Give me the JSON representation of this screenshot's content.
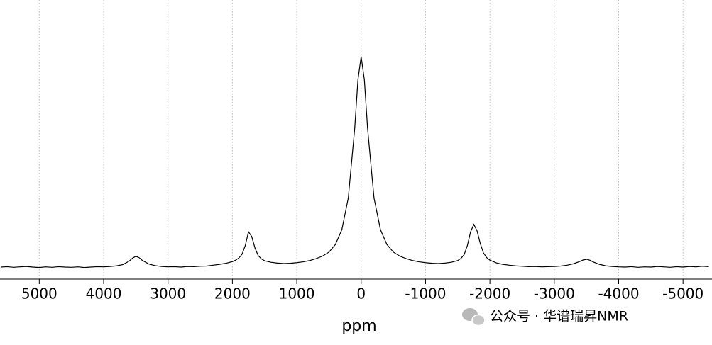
{
  "chart_data": {
    "type": "line",
    "xlabel": "ppm",
    "color": "#000000",
    "grid": true,
    "x_reversed": true,
    "xlim": [
      5610,
      -5450
    ],
    "ylim": [
      -5.4,
      126.8
    ],
    "xticks": [
      5000,
      4000,
      3000,
      2000,
      1000,
      0,
      -1000,
      -2000,
      -3000,
      -4000,
      -5000
    ],
    "x": [
      5600,
      5500,
      5400,
      5300,
      5200,
      5100,
      5000,
      4900,
      4800,
      4700,
      4600,
      4500,
      4400,
      4300,
      4200,
      4100,
      4000,
      3900,
      3800,
      3700,
      3600,
      3550,
      3500,
      3450,
      3400,
      3300,
      3200,
      3100,
      3000,
      2900,
      2800,
      2700,
      2600,
      2500,
      2400,
      2300,
      2200,
      2100,
      2000,
      1950,
      1900,
      1850,
      1800,
      1750,
      1700,
      1650,
      1600,
      1550,
      1500,
      1400,
      1300,
      1200,
      1100,
      1000,
      900,
      800,
      700,
      600,
      500,
      400,
      300,
      200,
      100,
      50,
      0,
      -50,
      -100,
      -200,
      -300,
      -400,
      -500,
      -600,
      -700,
      -800,
      -900,
      -1000,
      -1100,
      -1200,
      -1300,
      -1400,
      -1500,
      -1550,
      -1600,
      -1650,
      -1700,
      -1750,
      -1800,
      -1850,
      -1900,
      -1950,
      -2000,
      -2100,
      -2200,
      -2300,
      -2400,
      -2500,
      -2600,
      -2700,
      -2800,
      -2900,
      -3000,
      -3100,
      -3200,
      -3300,
      -3400,
      -3450,
      -3500,
      -3550,
      -3600,
      -3700,
      -3800,
      -3900,
      -4000,
      -4100,
      -4200,
      -4300,
      -4400,
      -4500,
      -4600,
      -4700,
      -4800,
      -4900,
      -5000,
      -5100,
      -5200,
      -5300,
      -5400
    ],
    "values": [
      0.3,
      0.5,
      0.2,
      0.4,
      0.6,
      0.3,
      0.1,
      0.4,
      0.2,
      0.5,
      0.3,
      0.2,
      0.4,
      0.1,
      0.3,
      0.5,
      0.4,
      0.6,
      0.9,
      1.5,
      3.2,
      4.6,
      5.4,
      4.8,
      3.5,
      1.8,
      1.0,
      0.6,
      0.4,
      0.5,
      0.3,
      0.6,
      0.5,
      0.7,
      0.8,
      1.2,
      1.6,
      2.1,
      2.9,
      3.6,
      4.6,
      6.4,
      10.5,
      17.0,
      14.8,
      9.4,
      5.8,
      4.2,
      3.3,
      2.6,
      2.2,
      2.0,
      2.1,
      2.4,
      2.8,
      3.4,
      4.3,
      5.5,
      7.4,
      11.0,
      18.0,
      33.0,
      66.0,
      89.0,
      100,
      89.0,
      66.0,
      33.0,
      18.0,
      11.0,
      7.4,
      5.5,
      4.3,
      3.4,
      2.8,
      2.4,
      2.1,
      2.0,
      2.2,
      2.6,
      3.4,
      4.4,
      6.2,
      10.5,
      17.0,
      20.5,
      17.5,
      11.5,
      7.0,
      4.8,
      3.6,
      2.3,
      1.6,
      1.2,
      0.9,
      0.7,
      0.5,
      0.6,
      0.4,
      0.5,
      0.6,
      0.8,
      1.2,
      1.9,
      3.0,
      3.7,
      4.0,
      3.6,
      2.8,
      1.6,
      0.9,
      0.6,
      0.4,
      0.3,
      0.5,
      0.2,
      0.4,
      0.3,
      0.6,
      0.4,
      0.2,
      0.5,
      0.3,
      0.6,
      0.4,
      0.7,
      0.5
    ],
    "watermark": "公众号 · 华谱瑞昇NMR"
  }
}
